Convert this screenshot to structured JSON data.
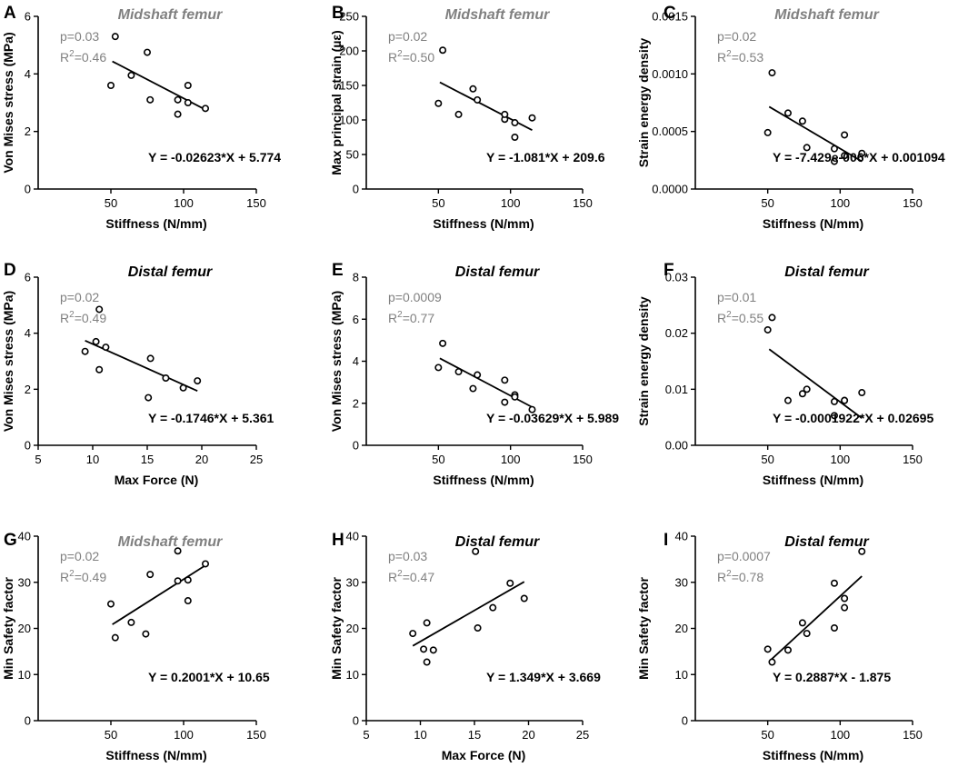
{
  "chart_data": [
    {
      "type": "scatter",
      "letter": "A",
      "title": "Midshaft femur",
      "title_color": "#808080",
      "xlabel": "Stiffness (N/mm)",
      "ylabel": "Von Mises stress (MPa)",
      "xlim": [
        0,
        150
      ],
      "ylim": [
        0,
        6
      ],
      "xticks": [
        50,
        100,
        150
      ],
      "yticks": [
        0,
        2,
        4,
        6
      ],
      "xtick_labels": [
        "50",
        "100",
        "150"
      ],
      "ytick_labels": [
        "0",
        "2",
        "4",
        "6"
      ],
      "points": [
        [
          50,
          3.6
        ],
        [
          53,
          5.3
        ],
        [
          64,
          3.95
        ],
        [
          75,
          4.75
        ],
        [
          77,
          3.1
        ],
        [
          96,
          2.6
        ],
        [
          96,
          3.1
        ],
        [
          103,
          3.0
        ],
        [
          103,
          3.6
        ],
        [
          115,
          2.8
        ]
      ],
      "fit": {
        "slope": -0.02623,
        "intercept": 5.774,
        "x_range": [
          51,
          115
        ]
      },
      "p_text": "p=0.03",
      "r2_text": "=0.46",
      "equation": "Y = -0.02623*X + 5.774"
    },
    {
      "type": "scatter",
      "letter": "B",
      "title": "Midshaft femur",
      "title_color": "#808080",
      "xlabel": "Stiffness (N/mm)",
      "ylabel": "Max principal strain (µε)",
      "xlim": [
        0,
        150
      ],
      "ylim": [
        0,
        250
      ],
      "xticks": [
        50,
        100,
        150
      ],
      "yticks": [
        0,
        50,
        100,
        150,
        200,
        250
      ],
      "xtick_labels": [
        "50",
        "100",
        "150"
      ],
      "ytick_labels": [
        "0",
        "50",
        "100",
        "150",
        "200",
        "250"
      ],
      "points": [
        [
          50,
          124
        ],
        [
          53,
          201
        ],
        [
          64,
          108
        ],
        [
          74,
          145
        ],
        [
          77,
          129
        ],
        [
          96,
          101
        ],
        [
          96,
          108
        ],
        [
          103,
          96
        ],
        [
          103,
          75
        ],
        [
          115,
          103
        ]
      ],
      "fit": {
        "slope": -1.081,
        "intercept": 209.6,
        "x_range": [
          51,
          115
        ]
      },
      "p_text": "p=0.02",
      "r2_text": "=0.50",
      "equation": "Y = -1.081*X + 209.6"
    },
    {
      "type": "scatter",
      "letter": "C",
      "title": "Midshaft femur",
      "title_color": "#808080",
      "xlabel": "Stiffness (N/mm)",
      "ylabel": "Strain energy density",
      "xlim": [
        0,
        150
      ],
      "ylim": [
        0,
        0.0015
      ],
      "xticks": [
        50,
        100,
        150
      ],
      "yticks": [
        0,
        0.0005,
        0.001,
        0.0015
      ],
      "xtick_labels": [
        "50",
        "100",
        "150"
      ],
      "ytick_labels": [
        "0.0000",
        "0.0005",
        "0.0010",
        "0.0015"
      ],
      "points": [
        [
          50,
          0.00049
        ],
        [
          53,
          0.00101
        ],
        [
          64,
          0.00066
        ],
        [
          74,
          0.00059
        ],
        [
          77,
          0.00036
        ],
        [
          96,
          0.00024
        ],
        [
          96,
          0.00035
        ],
        [
          103,
          0.00047
        ],
        [
          103,
          0.00029
        ],
        [
          115,
          0.00031
        ]
      ],
      "fit": {
        "slope": -7.429e-06,
        "intercept": 0.001094,
        "x_range": [
          51,
          115
        ]
      },
      "p_text": "p=0.02",
      "r2_text": "=0.53",
      "equation": "Y = -7.429e-006*X + 0.001094"
    },
    {
      "type": "scatter",
      "letter": "D",
      "title": "Distal femur",
      "title_color": "#000000",
      "xlabel": "Max Force (N)",
      "ylabel": "Von Mises stress (MPa)",
      "xlim": [
        5,
        25
      ],
      "ylim": [
        0,
        6
      ],
      "xticks": [
        5,
        10,
        15,
        20,
        25
      ],
      "yticks": [
        0,
        2,
        4,
        6
      ],
      "xtick_labels": [
        "5",
        "10",
        "15",
        "20",
        "25"
      ],
      "ytick_labels": [
        "0",
        "2",
        "4",
        "6"
      ],
      "points": [
        [
          9.3,
          3.35
        ],
        [
          10.3,
          3.7
        ],
        [
          10.6,
          4.85
        ],
        [
          10.6,
          2.7
        ],
        [
          11.2,
          3.5
        ],
        [
          15.1,
          1.7
        ],
        [
          15.3,
          3.1
        ],
        [
          16.7,
          2.4
        ],
        [
          18.3,
          2.05
        ],
        [
          19.6,
          2.3
        ]
      ],
      "fit": {
        "slope": -0.1746,
        "intercept": 5.361,
        "x_range": [
          9.3,
          19.6
        ]
      },
      "p_text": "p=0.02",
      "r2_text": "=0.49",
      "equation": "Y = -0.1746*X + 5.361"
    },
    {
      "type": "scatter",
      "letter": "E",
      "title": "Distal femur",
      "title_color": "#000000",
      "xlabel": "Stiffness (N/mm)",
      "ylabel": "Von Mises stress (MPa)",
      "xlim": [
        0,
        150
      ],
      "ylim": [
        0,
        8
      ],
      "xticks": [
        50,
        100,
        150
      ],
      "yticks": [
        0,
        2,
        4,
        6,
        8
      ],
      "xtick_labels": [
        "50",
        "100",
        "150"
      ],
      "ytick_labels": [
        "0",
        "2",
        "4",
        "6",
        "8"
      ],
      "points": [
        [
          50,
          3.7
        ],
        [
          53,
          4.85
        ],
        [
          64,
          3.5
        ],
        [
          74,
          2.7
        ],
        [
          77,
          3.35
        ],
        [
          96,
          3.1
        ],
        [
          96,
          2.05
        ],
        [
          103,
          2.4
        ],
        [
          103,
          2.3
        ],
        [
          115,
          1.7
        ]
      ],
      "fit": {
        "slope": -0.03629,
        "intercept": 5.989,
        "x_range": [
          51,
          115
        ]
      },
      "p_text": "p=0.0009",
      "r2_text": "=0.77",
      "equation": "Y = -0.03629*X + 5.989"
    },
    {
      "type": "scatter",
      "letter": "F",
      "title": "Distal femur",
      "title_color": "#000000",
      "xlabel": "Stiffness (N/mm)",
      "ylabel": "Strain energy density",
      "xlim": [
        0,
        150
      ],
      "ylim": [
        0,
        0.03
      ],
      "xticks": [
        50,
        100,
        150
      ],
      "yticks": [
        0,
        0.01,
        0.02,
        0.03
      ],
      "xtick_labels": [
        "50",
        "100",
        "150"
      ],
      "ytick_labels": [
        "0.00",
        "0.01",
        "0.02",
        "0.03"
      ],
      "points": [
        [
          50,
          0.0206
        ],
        [
          53,
          0.0228
        ],
        [
          64,
          0.008
        ],
        [
          74,
          0.0092
        ],
        [
          77,
          0.01
        ],
        [
          96,
          0.0053
        ],
        [
          96,
          0.0078
        ],
        [
          103,
          0.008
        ],
        [
          103,
          0.008
        ],
        [
          115,
          0.0094
        ]
      ],
      "fit": {
        "slope": -0.0001922,
        "intercept": 0.02695,
        "x_range": [
          51,
          115
        ]
      },
      "p_text": "p=0.01",
      "r2_text": "=0.55",
      "equation": "Y = -0.0001922*X + 0.02695"
    },
    {
      "type": "scatter",
      "letter": "G",
      "title": "Midshaft femur",
      "title_color": "#808080",
      "xlabel": "Stiffness (N/mm)",
      "ylabel": "Min Safety factor",
      "xlim": [
        0,
        150
      ],
      "ylim": [
        0,
        40
      ],
      "xticks": [
        50,
        100,
        150
      ],
      "yticks": [
        0,
        10,
        20,
        30,
        40
      ],
      "xtick_labels": [
        "50",
        "100",
        "150"
      ],
      "ytick_labels": [
        "0",
        "10",
        "20",
        "30",
        "40"
      ],
      "points": [
        [
          50,
          25.3
        ],
        [
          53,
          18.0
        ],
        [
          64,
          21.3
        ],
        [
          74,
          18.8
        ],
        [
          77,
          31.7
        ],
        [
          96,
          36.8
        ],
        [
          96,
          30.3
        ],
        [
          103,
          30.5
        ],
        [
          103,
          26.0
        ],
        [
          115,
          34.0
        ]
      ],
      "fit": {
        "slope": 0.2001,
        "intercept": 10.65,
        "x_range": [
          51,
          115
        ]
      },
      "p_text": "p=0.02",
      "r2_text": "=0.49",
      "equation": "Y = 0.2001*X + 10.65"
    },
    {
      "type": "scatter",
      "letter": "H",
      "title": "Distal femur",
      "title_color": "#000000",
      "xlabel": "Max Force (N)",
      "ylabel": "Min Safety factor",
      "xlim": [
        5,
        25
      ],
      "ylim": [
        0,
        40
      ],
      "xticks": [
        5,
        10,
        15,
        20,
        25
      ],
      "yticks": [
        0,
        10,
        20,
        30,
        40
      ],
      "xtick_labels": [
        "5",
        "10",
        "15",
        "20",
        "25"
      ],
      "ytick_labels": [
        "0",
        "10",
        "20",
        "30",
        "40"
      ],
      "points": [
        [
          9.3,
          18.9
        ],
        [
          10.3,
          15.5
        ],
        [
          10.6,
          21.2
        ],
        [
          10.6,
          12.7
        ],
        [
          11.2,
          15.3
        ],
        [
          15.1,
          36.7
        ],
        [
          15.3,
          20.1
        ],
        [
          16.7,
          24.5
        ],
        [
          18.3,
          29.8
        ],
        [
          19.6,
          26.5
        ]
      ],
      "fit": {
        "slope": 1.349,
        "intercept": 3.669,
        "x_range": [
          9.3,
          19.6
        ]
      },
      "p_text": "p=0.03",
      "r2_text": "=0.47",
      "equation": "Y = 1.349*X + 3.669"
    },
    {
      "type": "scatter",
      "letter": "I",
      "title": "Distal femur",
      "title_color": "#000000",
      "xlabel": "Stiffness (N/mm)",
      "ylabel": "Min Safety factor",
      "xlim": [
        0,
        150
      ],
      "ylim": [
        0,
        40
      ],
      "xticks": [
        50,
        100,
        150
      ],
      "yticks": [
        0,
        10,
        20,
        30,
        40
      ],
      "xtick_labels": [
        "50",
        "100",
        "150"
      ],
      "ytick_labels": [
        "0",
        "10",
        "20",
        "30",
        "40"
      ],
      "points": [
        [
          50,
          15.5
        ],
        [
          53,
          12.7
        ],
        [
          64,
          15.3
        ],
        [
          74,
          21.2
        ],
        [
          77,
          18.9
        ],
        [
          96,
          29.8
        ],
        [
          96,
          20.1
        ],
        [
          103,
          26.5
        ],
        [
          103,
          24.5
        ],
        [
          115,
          36.7
        ]
      ],
      "fit": {
        "slope": 0.2887,
        "intercept": -1.875,
        "x_range": [
          51,
          115
        ]
      },
      "p_text": "p=0.0007",
      "r2_text": "=0.78",
      "equation": "Y = 0.2887*X - 1.875"
    }
  ]
}
